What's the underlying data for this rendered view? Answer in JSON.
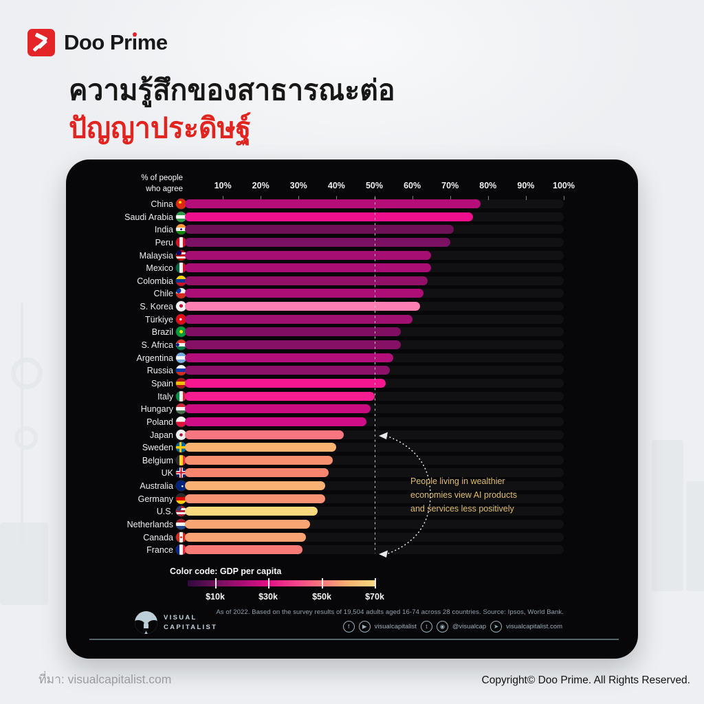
{
  "brand": {
    "name_pre": "Doo Pr",
    "name_i": "i",
    "name_post": "me",
    "accent_color": "#e42527"
  },
  "title": {
    "line1": "ความรู้สึกของสาธารณะต่อ",
    "line2": "ปัญญาประดิษฐ์",
    "line2_color": "#e22420"
  },
  "chart_data": {
    "type": "bar",
    "orientation": "horizontal",
    "axis_header": [
      "% of people",
      "who agree"
    ],
    "x_ticks": [
      "10%",
      "20%",
      "30%",
      "40%",
      "50%",
      "60%",
      "70%",
      "80%",
      "90%",
      "100%"
    ],
    "xlim": [
      0,
      100
    ],
    "reference_line_pct": 50,
    "categories": [
      "China",
      "Saudi Arabia",
      "India",
      "Peru",
      "Malaysia",
      "Mexico",
      "Colombia",
      "Chile",
      "S. Korea",
      "Türkiye",
      "Brazil",
      "S. Africa",
      "Argentina",
      "Russia",
      "Spain",
      "Italy",
      "Hungary",
      "Poland",
      "Japan",
      "Sweden",
      "Belgium",
      "UK",
      "Australia",
      "Germany",
      "U.S.",
      "Netherlands",
      "Canada",
      "France"
    ],
    "values": [
      78,
      76,
      71,
      70,
      65,
      65,
      64,
      63,
      62,
      60,
      57,
      57,
      55,
      54,
      53,
      50,
      49,
      48,
      42,
      40,
      39,
      38,
      37,
      37,
      35,
      33,
      32,
      31
    ],
    "bar_colors": [
      "#b50e78",
      "#ef0f8d",
      "#6f1157",
      "#7c1062",
      "#a60e72",
      "#aa0e74",
      "#921067",
      "#ad0e76",
      "#fc7fb1",
      "#a01070",
      "#7f1061",
      "#851064",
      "#b40e7a",
      "#8c1168",
      "#f6168e",
      "#f51d90",
      "#ca0c80",
      "#d00d86",
      "#f87680",
      "#f9b471",
      "#f6906e",
      "#f8866f",
      "#f9b274",
      "#f79272",
      "#f9d97d",
      "#f9a573",
      "#f9a274",
      "#f87b77"
    ],
    "flags": [
      {
        "t": "s",
        "c": [
          "#de2910"
        ],
        "dot": {
          "c": "#ffde00",
          "p": "40% 35%",
          "r": 14
        }
      },
      {
        "t": "h",
        "c": [
          "#2d9a47",
          "#f5f5f5",
          "#2d9a47"
        ]
      },
      {
        "t": "h",
        "c": [
          "#ff9933",
          "#f5f5f5",
          "#138808"
        ],
        "dot": {
          "c": "#000080",
          "p": "50% 50%",
          "r": 12
        }
      },
      {
        "t": "v",
        "c": [
          "#d91023",
          "#f5f5f5",
          "#d91023"
        ]
      },
      {
        "t": "h",
        "c": [
          "#cc0001",
          "#f5f5f5",
          "#cc0001",
          "#f5f5f5",
          "#cc0001"
        ],
        "dot": {
          "c": "#010066",
          "p": "28% 24%",
          "r": 24
        }
      },
      {
        "t": "v",
        "c": [
          "#006847",
          "#f5f5f5",
          "#ce1126"
        ]
      },
      {
        "t": "h",
        "c": [
          "#fcd116",
          "#003893",
          "#ce1126"
        ]
      },
      {
        "t": "h",
        "c": [
          "#f5f5f5",
          "#d52b1e"
        ],
        "dot": {
          "c": "#0039a6",
          "p": "25% 25%",
          "r": 22
        }
      },
      {
        "t": "s",
        "c": [
          "#f5f5f5"
        ],
        "dot": {
          "c": "#c60c30",
          "p": "50% 46%",
          "r": 22
        }
      },
      {
        "t": "s",
        "c": [
          "#e30a17"
        ],
        "dot": {
          "c": "#ffffff",
          "p": "45% 50%",
          "r": 15
        }
      },
      {
        "t": "s",
        "c": [
          "#009b3a"
        ],
        "dot": {
          "c": "#ffdf00",
          "p": "50% 50%",
          "r": 22
        }
      },
      {
        "t": "h",
        "c": [
          "#de3831",
          "#f5f5f5",
          "#007847"
        ],
        "dot": {
          "c": "#001489",
          "p": "16% 50%",
          "r": 15
        }
      },
      {
        "t": "h",
        "c": [
          "#74acdf",
          "#f5f5f5",
          "#74acdf"
        ]
      },
      {
        "t": "h",
        "c": [
          "#f5f5f5",
          "#0039a6",
          "#d52b1e"
        ]
      },
      {
        "t": "h",
        "c": [
          "#aa151b",
          "#f1bf00",
          "#aa151b"
        ]
      },
      {
        "t": "v",
        "c": [
          "#009246",
          "#f5f5f5",
          "#ce2b37"
        ]
      },
      {
        "t": "h",
        "c": [
          "#ce2939",
          "#f5f5f5",
          "#477050"
        ]
      },
      {
        "t": "h",
        "c": [
          "#f5f5f5",
          "#dc143c"
        ]
      },
      {
        "t": "s",
        "c": [
          "#f2f2f2"
        ],
        "dot": {
          "c": "#bc002d",
          "p": "50% 50%",
          "r": 20
        }
      },
      {
        "t": "cross",
        "bg": "#006aa7",
        "cross": "#fecc00"
      },
      {
        "t": "v",
        "c": [
          "#2b2b2b",
          "#fdda24",
          "#ef3340"
        ]
      },
      {
        "t": "uk",
        "bg": "#012169",
        "outer": "#f5f5f5",
        "inner": "#c8102e"
      },
      {
        "t": "s",
        "c": [
          "#00247d"
        ],
        "dot": {
          "c": "#f5f5f5",
          "p": "62% 55%",
          "r": 10
        }
      },
      {
        "t": "h",
        "c": [
          "#2b2b2b",
          "#dd0000",
          "#ffce00"
        ]
      },
      {
        "t": "h",
        "c": [
          "#b22234",
          "#f5f5f5",
          "#b22234",
          "#f5f5f5",
          "#b22234"
        ],
        "dot": {
          "c": "#3c3b6e",
          "p": "25% 22%",
          "r": 24
        }
      },
      {
        "t": "h",
        "c": [
          "#ae1c28",
          "#f5f5f5",
          "#21468b"
        ]
      },
      {
        "t": "v",
        "c": [
          "#d52b1e",
          "#f5f5f5",
          "#d52b1e"
        ],
        "dot": {
          "c": "#d52b1e",
          "p": "50% 50%",
          "r": 12
        }
      },
      {
        "t": "v",
        "c": [
          "#002395",
          "#f5f5f5",
          "#ed2939"
        ]
      }
    ],
    "annotation": {
      "lines": [
        "People living in wealthier",
        "economies view AI products",
        "and services less positively"
      ],
      "color": "#debd6e"
    },
    "legend": {
      "title": "Color code: GDP per capita",
      "tick_labels": [
        "$10k",
        "$30k",
        "$50k",
        "$70k"
      ],
      "gradient_colors": [
        "#31083f",
        "#6d1059",
        "#a80e74",
        "#e01186",
        "#f64389",
        "#f7797c",
        "#f9b471",
        "#fbd981"
      ]
    },
    "source_note": "As of 2022. Based on the survey results of 19,504 adults aged 16-74 across 28 countries. Source: Ipsos, World Bank.",
    "publisher": {
      "logo_line1": "VISUAL",
      "logo_line2": "CAPITALIST",
      "social_handle_1": "visualcapitalist",
      "social_handle_2": "@visualcap",
      "social_handle_3": "visualcapitalist.com"
    }
  },
  "footer": {
    "attribution": "ที่มา: visualcapitalist.com",
    "copyright": "Copyright© Doo Prime. All Rights Reserved."
  }
}
